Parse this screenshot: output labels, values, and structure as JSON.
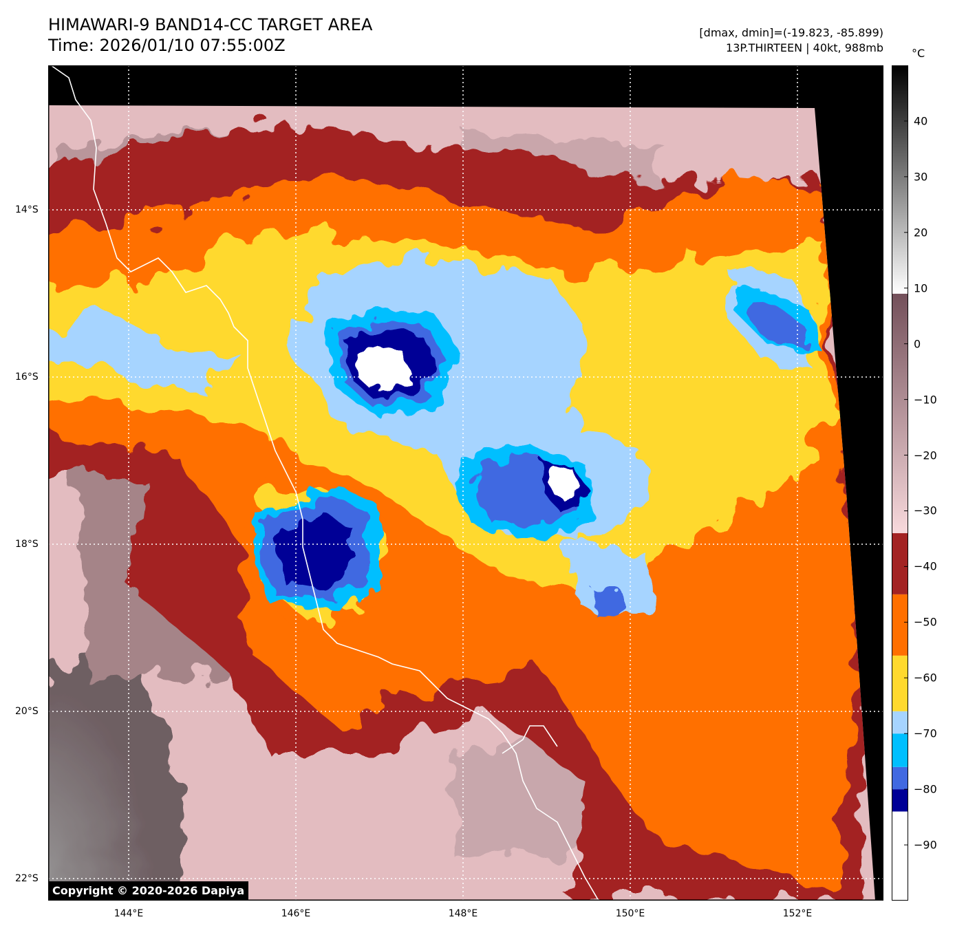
{
  "header": {
    "title_line1": "HIMAWARI-9 BAND14-CC TARGET AREA",
    "title_line2": "Time: 2026/01/10 07:55:00Z",
    "info_line1": "[dmax, dmin]=(-19.823, -85.899)",
    "info_line2": "13P.THIRTEEN | 40kt, 988mb"
  },
  "map": {
    "lon_labels": [
      "144°E",
      "146°E",
      "148°E",
      "150°E",
      "152°E"
    ],
    "lat_labels": [
      "14°S",
      "16°S",
      "18°S",
      "20°S",
      "22°S"
    ],
    "grid": true,
    "coastline_color": "#ffffff",
    "no_data_color": "#000000",
    "copyright": "Copyright © 2020-2026 Dapiya"
  },
  "colorbar": {
    "unit": "°C",
    "ticks": [
      "40",
      "30",
      "20",
      "10",
      "0",
      "−10",
      "−20",
      "−30",
      "−40",
      "−50",
      "−60",
      "−70",
      "−80",
      "−90"
    ],
    "range": [
      -100,
      50
    ],
    "segments": [
      {
        "from": -100,
        "to": -84,
        "color": "#ffffff"
      },
      {
        "from": -84,
        "to": -80,
        "color": "#000096"
      },
      {
        "from": -80,
        "to": -76,
        "color": "#4169e1"
      },
      {
        "from": -76,
        "to": -70,
        "color": "#00bfff"
      },
      {
        "from": -70,
        "to": -66,
        "color": "#a6d4ff"
      },
      {
        "from": -66,
        "to": -56,
        "color": "#ffd92e"
      },
      {
        "from": -56,
        "to": -45,
        "color": "#ff6f00"
      },
      {
        "from": -45,
        "to": -34,
        "color": "#a32323"
      },
      {
        "from": -34,
        "to": 9,
        "color_top": "#73505a",
        "color_bottom": "#f8d9dc"
      },
      {
        "from": 9,
        "to": 50,
        "color_top": "#000000",
        "color_bottom": "#ffffff"
      }
    ]
  }
}
